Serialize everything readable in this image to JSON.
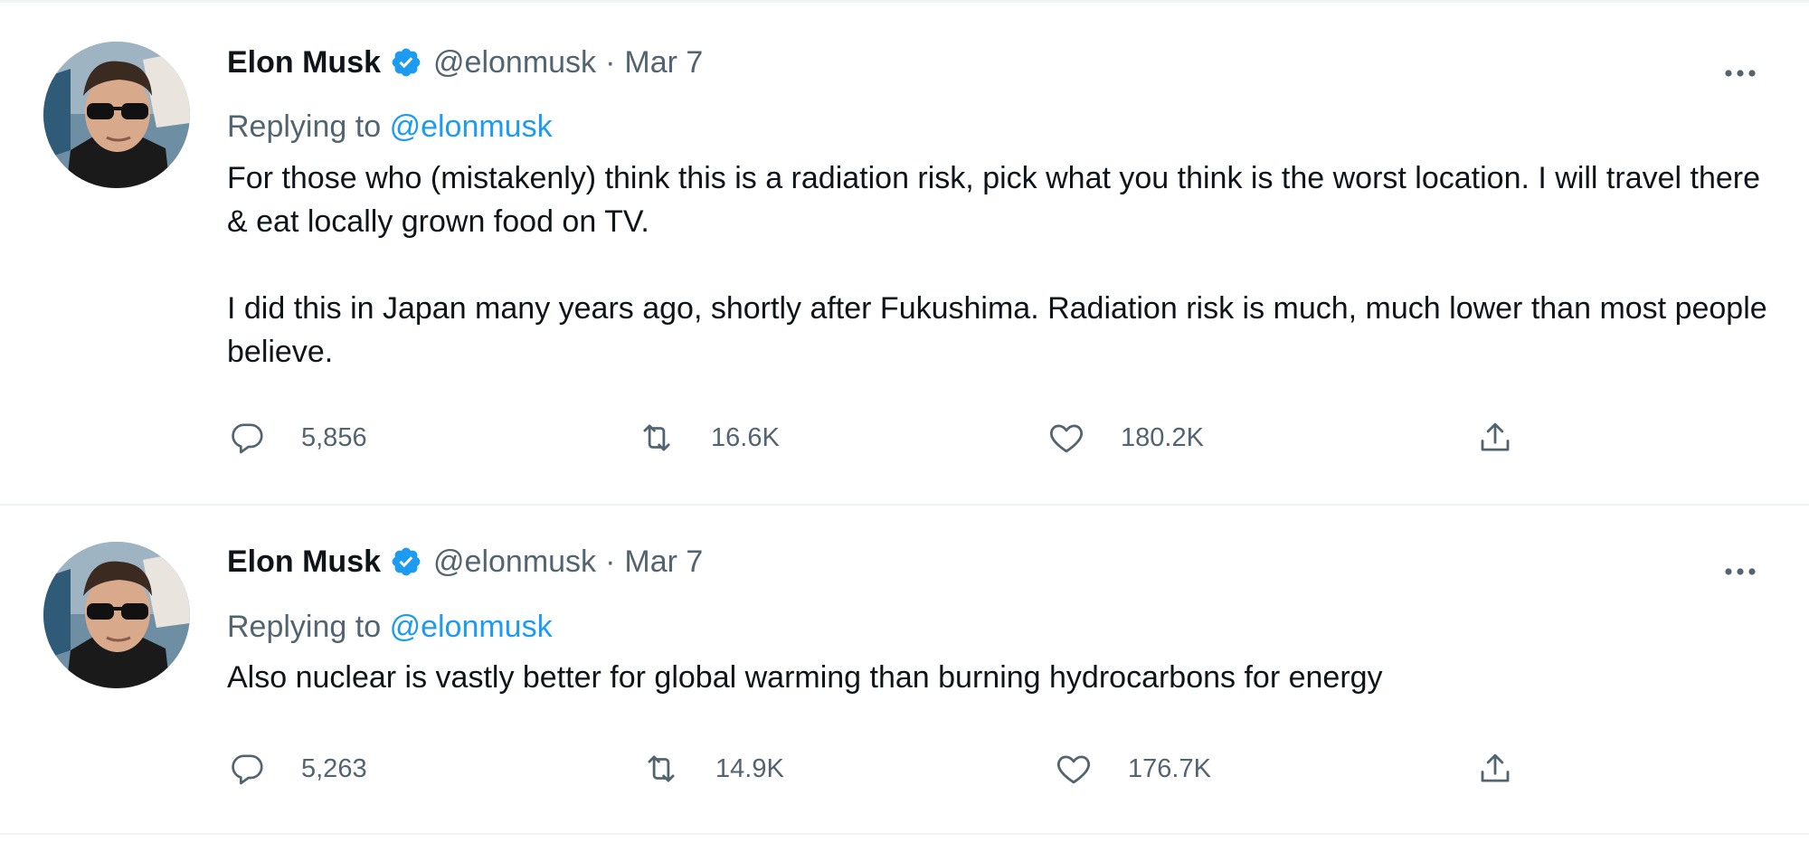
{
  "tweets": [
    {
      "name": "Elon Musk",
      "handle": "@elonmusk",
      "separator": "·",
      "date": "Mar 7",
      "replying_prefix": "Replying to",
      "replying_handle": "@elonmusk",
      "paragraphs": [
        "For those who (mistakenly) think this is a radiation risk, pick what you think is the worst location. I will travel there & eat locally grown food on TV.",
        "I did this in Japan many years ago, shortly after Fukushima. Radiation risk is much, much lower than most people believe."
      ],
      "replies": "5,856",
      "retweets": "16.6K",
      "likes": "180.2K"
    },
    {
      "name": "Elon Musk",
      "handle": "@elonmusk",
      "separator": "·",
      "date": "Mar 7",
      "replying_prefix": "Replying to",
      "replying_handle": "@elonmusk",
      "paragraphs": [
        "Also nuclear is vastly better for global warming than burning hydrocarbons for energy"
      ],
      "replies": "5,263",
      "retweets": "14.9K",
      "likes": "176.7K"
    }
  ],
  "icons": {
    "verified": "verified-badge-icon",
    "more": "more-icon",
    "reply": "reply-icon",
    "retweet": "retweet-icon",
    "like": "heart-icon",
    "share": "share-icon"
  },
  "colors": {
    "link": "#1d9bf0",
    "secondary_text": "#536471",
    "primary_text": "#0f1419",
    "divider": "#eff3f4"
  }
}
